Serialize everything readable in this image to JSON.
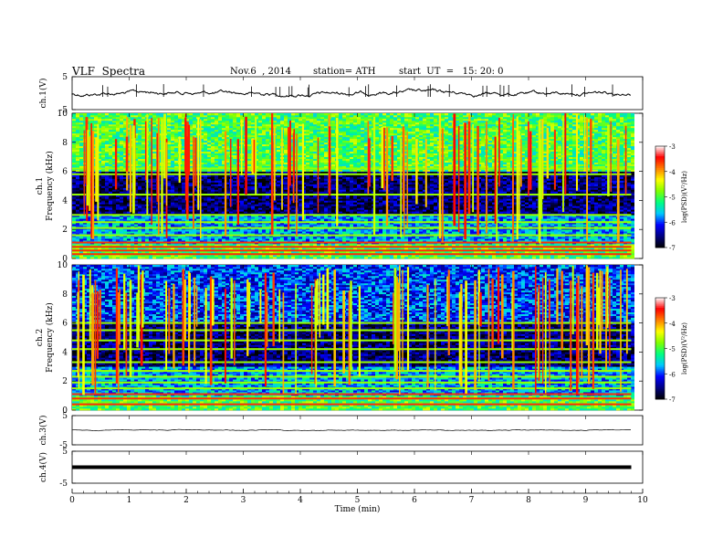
{
  "header": {
    "title": "VLF  Spectra",
    "date": "Nov.6  , 2014",
    "station": "station= ATH",
    "start": "start  UT  =   15: 20: 0"
  },
  "chart_data": [
    {
      "type": "line",
      "panel": "ch1-waveform",
      "ylabel": "ch.1(V)",
      "ylim": [
        -5,
        5
      ],
      "yticks": [
        "5",
        "-5"
      ],
      "xlim": [
        0,
        10
      ],
      "baseline": 0,
      "trace_extent_min": 9.8,
      "color": "#000000"
    },
    {
      "type": "heatmap",
      "panel": "ch1-spectrogram",
      "ylabel": "ch.1\nFrequency  (kHz)",
      "ylim": [
        0,
        10
      ],
      "yticks": [
        "0",
        "2",
        "4",
        "6",
        "8",
        "10"
      ],
      "xlim": [
        0,
        10
      ],
      "data_extent_min": 9.8,
      "colorbar": {
        "label": "log(PSD)(V²/Hz)",
        "range": [
          -7,
          -3
        ],
        "ticks": [
          "-3",
          "-4",
          "-5",
          "-6",
          "-7"
        ]
      }
    },
    {
      "type": "heatmap",
      "panel": "ch2-spectrogram",
      "ylabel": "ch.2\nFrequency  (kHz)",
      "ylim": [
        0,
        10
      ],
      "yticks": [
        "0",
        "2",
        "4",
        "6",
        "8",
        "10"
      ],
      "xlim": [
        0,
        10
      ],
      "data_extent_min": 9.8,
      "colorbar": {
        "label": "log(PSD)(V²/Hz)",
        "range": [
          -7,
          -3
        ],
        "ticks": [
          "-3",
          "-4",
          "-5",
          "-6",
          "-7"
        ]
      }
    },
    {
      "type": "line",
      "panel": "ch3-waveform",
      "ylabel": "ch.3(V)",
      "ylim": [
        -5,
        5
      ],
      "yticks": [
        "5",
        "-5"
      ],
      "xlim": [
        0,
        10
      ],
      "baseline": 0,
      "trace_extent_min": 9.8,
      "color": "#000000"
    },
    {
      "type": "line",
      "panel": "ch4-waveform",
      "ylabel": "ch.4(V)",
      "ylim": [
        -5,
        5
      ],
      "yticks": [
        "5",
        "-5"
      ],
      "xlim": [
        0,
        10
      ],
      "baseline": 0,
      "trace_extent_min": 9.8,
      "color": "#000000"
    }
  ],
  "xaxis": {
    "label": "Time  (min)",
    "ticks": [
      "0",
      "1",
      "2",
      "3",
      "4",
      "5",
      "6",
      "7",
      "8",
      "9",
      "10"
    ]
  },
  "colors": {
    "background": "#ffffff",
    "axis": "#000000",
    "colormap": [
      "#000000",
      "#000080",
      "#0000ff",
      "#00c8ff",
      "#00ff80",
      "#80ff00",
      "#ffff00",
      "#ff8000",
      "#ff0000",
      "#ffffff"
    ]
  }
}
